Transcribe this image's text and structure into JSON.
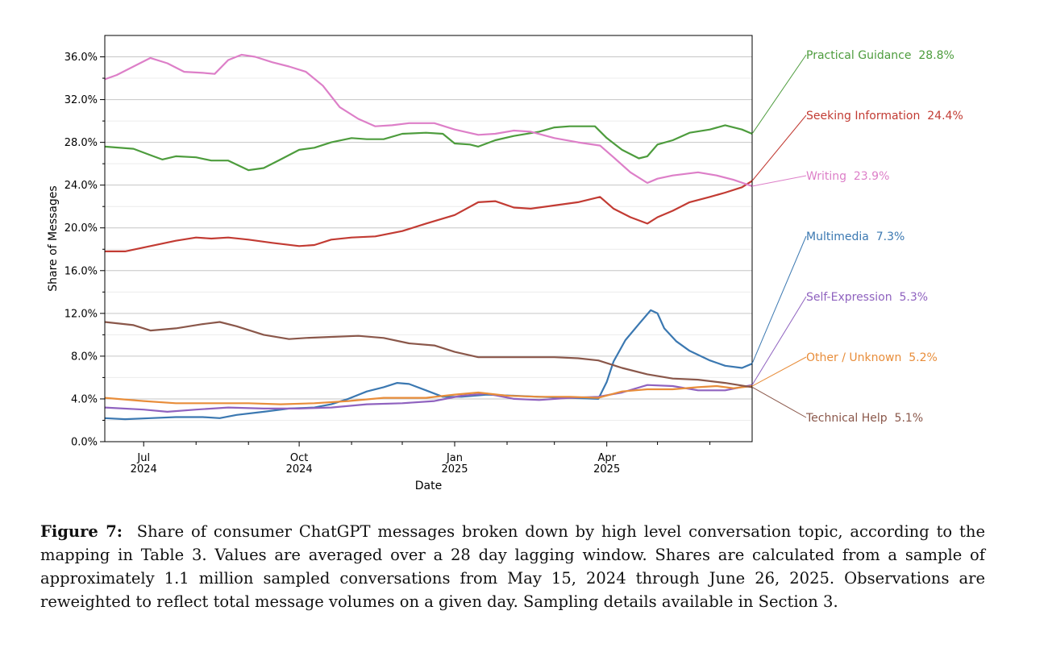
{
  "chart_data": {
    "type": "line",
    "xlabel": "Date",
    "ylabel": "Share of Messages",
    "x_range": [
      "2024-06-08",
      "2025-06-26"
    ],
    "ylim": [
      0,
      38
    ],
    "y_ticks": [
      0,
      4,
      8,
      12,
      16,
      20,
      24,
      28,
      32,
      36
    ],
    "y_tick_labels": [
      "0.0%",
      "4.0%",
      "8.0%",
      "12.0%",
      "16.0%",
      "20.0%",
      "24.0%",
      "28.0%",
      "32.0%",
      "36.0%"
    ],
    "x_ticks": [
      {
        "date": "2024-07-01",
        "label": "Jul",
        "year": "2024"
      },
      {
        "date": "2024-10-01",
        "label": "Oct",
        "year": "2024"
      },
      {
        "date": "2025-01-01",
        "label": "Jan",
        "year": "2025"
      },
      {
        "date": "2025-04-01",
        "label": "Apr",
        "year": "2025"
      }
    ],
    "x_minor_ticks": [
      "2024-08-01",
      "2024-09-01",
      "2024-11-01",
      "2024-12-01",
      "2025-02-01",
      "2025-03-01",
      "2025-05-01",
      "2025-06-01"
    ],
    "grid": true,
    "legend_position": "right",
    "series": [
      {
        "name": "Practical Guidance",
        "final_label": "28.8%",
        "color": "#4d9c3d",
        "points": [
          [
            "2024-06-08",
            27.6
          ],
          [
            "2024-06-25",
            27.4
          ],
          [
            "2024-07-05",
            26.8
          ],
          [
            "2024-07-12",
            26.4
          ],
          [
            "2024-07-20",
            26.7
          ],
          [
            "2024-08-01",
            26.6
          ],
          [
            "2024-08-10",
            26.3
          ],
          [
            "2024-08-20",
            26.3
          ],
          [
            "2024-09-01",
            25.4
          ],
          [
            "2024-09-10",
            25.6
          ],
          [
            "2024-09-20",
            26.4
          ],
          [
            "2024-10-01",
            27.3
          ],
          [
            "2024-10-10",
            27.5
          ],
          [
            "2024-10-20",
            28.0
          ],
          [
            "2024-11-01",
            28.4
          ],
          [
            "2024-11-10",
            28.3
          ],
          [
            "2024-11-20",
            28.3
          ],
          [
            "2024-12-01",
            28.8
          ],
          [
            "2024-12-15",
            28.9
          ],
          [
            "2024-12-25",
            28.8
          ],
          [
            "2025-01-01",
            27.9
          ],
          [
            "2025-01-10",
            27.8
          ],
          [
            "2025-01-15",
            27.6
          ],
          [
            "2025-01-25",
            28.2
          ],
          [
            "2025-02-05",
            28.6
          ],
          [
            "2025-02-20",
            29.0
          ],
          [
            "2025-03-01",
            29.4
          ],
          [
            "2025-03-10",
            29.5
          ],
          [
            "2025-03-25",
            29.5
          ],
          [
            "2025-04-01",
            28.4
          ],
          [
            "2025-04-10",
            27.3
          ],
          [
            "2025-04-20",
            26.5
          ],
          [
            "2025-04-25",
            26.7
          ],
          [
            "2025-05-01",
            27.8
          ],
          [
            "2025-05-10",
            28.2
          ],
          [
            "2025-05-20",
            28.9
          ],
          [
            "2025-06-01",
            29.2
          ],
          [
            "2025-06-10",
            29.6
          ],
          [
            "2025-06-20",
            29.2
          ],
          [
            "2025-06-26",
            28.8
          ]
        ]
      },
      {
        "name": "Seeking Information",
        "final_label": "24.4%",
        "color": "#c23b33",
        "points": [
          [
            "2024-06-08",
            17.8
          ],
          [
            "2024-06-20",
            17.8
          ],
          [
            "2024-07-05",
            18.3
          ],
          [
            "2024-07-20",
            18.8
          ],
          [
            "2024-08-01",
            19.1
          ],
          [
            "2024-08-10",
            19.0
          ],
          [
            "2024-08-20",
            19.1
          ],
          [
            "2024-09-01",
            18.9
          ],
          [
            "2024-09-15",
            18.6
          ],
          [
            "2024-10-01",
            18.3
          ],
          [
            "2024-10-10",
            18.4
          ],
          [
            "2024-10-20",
            18.9
          ],
          [
            "2024-11-01",
            19.1
          ],
          [
            "2024-11-15",
            19.2
          ],
          [
            "2024-12-01",
            19.7
          ],
          [
            "2024-12-15",
            20.4
          ],
          [
            "2025-01-01",
            21.2
          ],
          [
            "2025-01-15",
            22.4
          ],
          [
            "2025-01-25",
            22.5
          ],
          [
            "2025-02-05",
            21.9
          ],
          [
            "2025-02-15",
            21.8
          ],
          [
            "2025-03-01",
            22.1
          ],
          [
            "2025-03-15",
            22.4
          ],
          [
            "2025-03-28",
            22.9
          ],
          [
            "2025-04-05",
            21.8
          ],
          [
            "2025-04-15",
            21.0
          ],
          [
            "2025-04-25",
            20.4
          ],
          [
            "2025-05-01",
            21.0
          ],
          [
            "2025-05-10",
            21.6
          ],
          [
            "2025-05-20",
            22.4
          ],
          [
            "2025-06-01",
            22.9
          ],
          [
            "2025-06-10",
            23.3
          ],
          [
            "2025-06-20",
            23.8
          ],
          [
            "2025-06-26",
            24.4
          ]
        ]
      },
      {
        "name": "Writing",
        "final_label": "23.9%",
        "color": "#dd7fc8",
        "points": [
          [
            "2024-06-08",
            33.9
          ],
          [
            "2024-06-15",
            34.3
          ],
          [
            "2024-06-25",
            35.1
          ],
          [
            "2024-07-05",
            35.9
          ],
          [
            "2024-07-15",
            35.4
          ],
          [
            "2024-07-25",
            34.6
          ],
          [
            "2024-08-05",
            34.5
          ],
          [
            "2024-08-12",
            34.4
          ],
          [
            "2024-08-20",
            35.7
          ],
          [
            "2024-08-28",
            36.2
          ],
          [
            "2024-09-05",
            36.0
          ],
          [
            "2024-09-15",
            35.5
          ],
          [
            "2024-09-25",
            35.1
          ],
          [
            "2024-10-05",
            34.6
          ],
          [
            "2024-10-15",
            33.3
          ],
          [
            "2024-10-25",
            31.3
          ],
          [
            "2024-11-05",
            30.2
          ],
          [
            "2024-11-15",
            29.5
          ],
          [
            "2024-11-25",
            29.6
          ],
          [
            "2024-12-05",
            29.8
          ],
          [
            "2024-12-20",
            29.8
          ],
          [
            "2025-01-01",
            29.2
          ],
          [
            "2025-01-15",
            28.7
          ],
          [
            "2025-01-25",
            28.8
          ],
          [
            "2025-02-05",
            29.1
          ],
          [
            "2025-02-15",
            29.0
          ],
          [
            "2025-03-01",
            28.4
          ],
          [
            "2025-03-15",
            28.0
          ],
          [
            "2025-03-28",
            27.7
          ],
          [
            "2025-04-05",
            26.6
          ],
          [
            "2025-04-15",
            25.2
          ],
          [
            "2025-04-25",
            24.2
          ],
          [
            "2025-05-01",
            24.6
          ],
          [
            "2025-05-10",
            24.9
          ],
          [
            "2025-05-25",
            25.2
          ],
          [
            "2025-06-05",
            24.9
          ],
          [
            "2025-06-15",
            24.5
          ],
          [
            "2025-06-26",
            23.9
          ]
        ]
      },
      {
        "name": "Multimedia",
        "final_label": "7.3%",
        "color": "#3b78b1",
        "points": [
          [
            "2024-06-08",
            2.2
          ],
          [
            "2024-06-20",
            2.1
          ],
          [
            "2024-07-05",
            2.2
          ],
          [
            "2024-07-20",
            2.3
          ],
          [
            "2024-08-05",
            2.3
          ],
          [
            "2024-08-15",
            2.2
          ],
          [
            "2024-08-25",
            2.5
          ],
          [
            "2024-09-10",
            2.8
          ],
          [
            "2024-09-25",
            3.1
          ],
          [
            "2024-10-10",
            3.2
          ],
          [
            "2024-10-20",
            3.5
          ],
          [
            "2024-10-30",
            4.0
          ],
          [
            "2024-11-10",
            4.7
          ],
          [
            "2024-11-20",
            5.1
          ],
          [
            "2024-11-28",
            5.5
          ],
          [
            "2024-12-05",
            5.4
          ],
          [
            "2024-12-15",
            4.8
          ],
          [
            "2024-12-25",
            4.2
          ],
          [
            "2025-01-05",
            4.2
          ],
          [
            "2025-01-20",
            4.4
          ],
          [
            "2025-02-05",
            4.3
          ],
          [
            "2025-02-20",
            4.2
          ],
          [
            "2025-03-10",
            4.1
          ],
          [
            "2025-03-27",
            4.0
          ],
          [
            "2025-04-01",
            5.6
          ],
          [
            "2025-04-05",
            7.5
          ],
          [
            "2025-04-12",
            9.5
          ],
          [
            "2025-04-20",
            11.0
          ],
          [
            "2025-04-27",
            12.3
          ],
          [
            "2025-05-01",
            12.0
          ],
          [
            "2025-05-05",
            10.6
          ],
          [
            "2025-05-12",
            9.4
          ],
          [
            "2025-05-20",
            8.5
          ],
          [
            "2025-06-01",
            7.6
          ],
          [
            "2025-06-10",
            7.1
          ],
          [
            "2025-06-20",
            6.9
          ],
          [
            "2025-06-26",
            7.3
          ]
        ]
      },
      {
        "name": "Self-Expression",
        "final_label": "5.3%",
        "color": "#8f62bf",
        "points": [
          [
            "2024-06-08",
            3.2
          ],
          [
            "2024-07-01",
            3.0
          ],
          [
            "2024-07-15",
            2.8
          ],
          [
            "2024-08-01",
            3.0
          ],
          [
            "2024-08-20",
            3.2
          ],
          [
            "2024-09-10",
            3.1
          ],
          [
            "2024-10-01",
            3.1
          ],
          [
            "2024-10-20",
            3.2
          ],
          [
            "2024-11-10",
            3.5
          ],
          [
            "2024-12-01",
            3.6
          ],
          [
            "2024-12-20",
            3.8
          ],
          [
            "2025-01-05",
            4.3
          ],
          [
            "2025-01-20",
            4.5
          ],
          [
            "2025-02-05",
            4.0
          ],
          [
            "2025-02-20",
            3.9
          ],
          [
            "2025-03-10",
            4.1
          ],
          [
            "2025-03-27",
            4.2
          ],
          [
            "2025-04-10",
            4.6
          ],
          [
            "2025-04-25",
            5.3
          ],
          [
            "2025-05-10",
            5.2
          ],
          [
            "2025-05-25",
            4.8
          ],
          [
            "2025-06-10",
            4.8
          ],
          [
            "2025-06-26",
            5.3
          ]
        ]
      },
      {
        "name": "Other / Unknown",
        "final_label": "5.2%",
        "color": "#e88d3a",
        "points": [
          [
            "2024-06-08",
            4.1
          ],
          [
            "2024-07-01",
            3.8
          ],
          [
            "2024-07-20",
            3.6
          ],
          [
            "2024-08-10",
            3.6
          ],
          [
            "2024-09-01",
            3.6
          ],
          [
            "2024-09-20",
            3.5
          ],
          [
            "2024-10-10",
            3.6
          ],
          [
            "2024-10-30",
            3.8
          ],
          [
            "2024-11-20",
            4.1
          ],
          [
            "2024-12-15",
            4.1
          ],
          [
            "2025-01-01",
            4.4
          ],
          [
            "2025-01-15",
            4.6
          ],
          [
            "2025-02-01",
            4.3
          ],
          [
            "2025-02-20",
            4.2
          ],
          [
            "2025-03-10",
            4.2
          ],
          [
            "2025-03-27",
            4.1
          ],
          [
            "2025-04-10",
            4.7
          ],
          [
            "2025-04-25",
            4.9
          ],
          [
            "2025-05-10",
            4.9
          ],
          [
            "2025-05-25",
            5.1
          ],
          [
            "2025-06-05",
            5.2
          ],
          [
            "2025-06-15",
            5.0
          ],
          [
            "2025-06-26",
            5.2
          ]
        ]
      },
      {
        "name": "Technical Help",
        "final_label": "5.1%",
        "color": "#8a574a",
        "points": [
          [
            "2024-06-08",
            11.2
          ],
          [
            "2024-06-25",
            10.9
          ],
          [
            "2024-07-05",
            10.4
          ],
          [
            "2024-07-20",
            10.6
          ],
          [
            "2024-08-05",
            11.0
          ],
          [
            "2024-08-15",
            11.2
          ],
          [
            "2024-08-25",
            10.8
          ],
          [
            "2024-09-10",
            10.0
          ],
          [
            "2024-09-25",
            9.6
          ],
          [
            "2024-10-05",
            9.7
          ],
          [
            "2024-10-20",
            9.8
          ],
          [
            "2024-11-05",
            9.9
          ],
          [
            "2024-11-20",
            9.7
          ],
          [
            "2024-12-05",
            9.2
          ],
          [
            "2024-12-20",
            9.0
          ],
          [
            "2025-01-01",
            8.4
          ],
          [
            "2025-01-15",
            7.9
          ],
          [
            "2025-02-01",
            7.9
          ],
          [
            "2025-02-15",
            7.9
          ],
          [
            "2025-03-01",
            7.9
          ],
          [
            "2025-03-15",
            7.8
          ],
          [
            "2025-03-27",
            7.6
          ],
          [
            "2025-04-10",
            6.9
          ],
          [
            "2025-04-25",
            6.3
          ],
          [
            "2025-05-10",
            5.9
          ],
          [
            "2025-05-25",
            5.8
          ],
          [
            "2025-06-10",
            5.5
          ],
          [
            "2025-06-26",
            5.1
          ]
        ]
      }
    ]
  },
  "caption": {
    "label": "Figure 7:",
    "text": "Share of consumer ChatGPT messages broken down by high level conversation topic, according to the mapping in Table 3. Values are averaged over a 28 day lagging window. Shares are calculated from a sample of approximately 1.1 million sampled conversations from May 15, 2024 through June 26, 2025. Observations are reweighted to reflect total message volumes on a given day. Sampling details available in Section 3."
  }
}
